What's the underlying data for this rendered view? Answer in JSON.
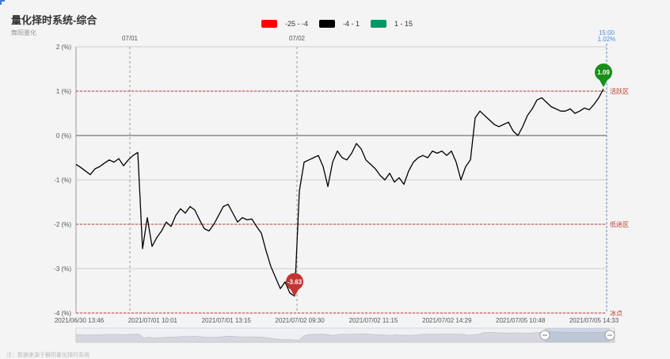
{
  "header": {
    "title": "量化择时系统-综合",
    "subtitle": "舞阳量化"
  },
  "legend": [
    {
      "label": "-25 - -4",
      "color": "#ff0000"
    },
    {
      "label": "-4 - 1",
      "color": "#000000"
    },
    {
      "label": "1 - 15",
      "color": "#009966"
    }
  ],
  "colors": {
    "line": "#000000",
    "zone_line": "#c0392b",
    "min_marker": "#c23531",
    "max_marker": "#1a8f1a",
    "cursor": "#4a90d9",
    "grid": "#cccccc"
  },
  "chart_data": {
    "type": "line",
    "title": "量化择时系统-综合",
    "ylim": [
      -4,
      2
    ],
    "y_ticks": [
      "2 (%)",
      "1 (%)",
      "0 (%)",
      "-1 (%)",
      "-2 (%)",
      "-3 (%)",
      "-4 (%)"
    ],
    "y_tick_values": [
      2,
      1,
      0,
      -1,
      -2,
      -3,
      -4
    ],
    "x_tick_labels": [
      "2021/06/30 13:46",
      "2021/07/01 10:01",
      "2021/07/01 13:15",
      "2021/07/02 09:30",
      "2021/07/02 11:15",
      "2021/07/02 14:29",
      "2021/07/05 10:48",
      "2021/07/05 14:33"
    ],
    "day_markers": [
      "07/01",
      "07/02"
    ],
    "zones": [
      {
        "label": "活跃区",
        "value": 1
      },
      {
        "label": "低迷区",
        "value": -2
      },
      {
        "label": "冰点",
        "value": -4
      }
    ],
    "markers": {
      "min": {
        "label": "-3.63",
        "value": -3.63
      },
      "max": {
        "label": "1.09",
        "value": 1.09
      }
    },
    "cursor": {
      "time": "15:00",
      "value": "1.02%"
    },
    "series": [
      {
        "values": [
          -0.65,
          -0.72,
          -0.8,
          -0.88,
          -0.75,
          -0.7,
          -0.62,
          -0.55,
          -0.6,
          -0.52,
          -0.68,
          -0.55,
          -0.45,
          -0.38,
          -2.55,
          -1.85,
          -2.5,
          -2.3,
          -2.15,
          -1.95,
          -2.05,
          -1.8,
          -1.65,
          -1.75,
          -1.6,
          -1.68,
          -1.9,
          -2.1,
          -2.15,
          -2.0,
          -1.8,
          -1.6,
          -1.55,
          -1.75,
          -1.95,
          -1.85,
          -1.9,
          -1.88,
          -2.05,
          -2.2,
          -2.6,
          -2.95,
          -3.2,
          -3.45,
          -3.3,
          -3.55,
          -3.62,
          -1.25,
          -0.6,
          -0.55,
          -0.5,
          -0.45,
          -0.7,
          -1.15,
          -0.6,
          -0.35,
          -0.5,
          -0.55,
          -0.4,
          -0.18,
          -0.3,
          -0.55,
          -0.65,
          -0.75,
          -0.9,
          -1.0,
          -0.85,
          -1.05,
          -0.95,
          -1.1,
          -0.8,
          -0.6,
          -0.5,
          -0.45,
          -0.5,
          -0.35,
          -0.4,
          -0.35,
          -0.45,
          -0.35,
          -0.6,
          -1.0,
          -0.7,
          -0.55,
          0.4,
          0.55,
          0.45,
          0.35,
          0.25,
          0.2,
          0.25,
          0.3,
          0.1,
          0.0,
          0.2,
          0.45,
          0.6,
          0.8,
          0.85,
          0.75,
          0.65,
          0.6,
          0.55,
          0.55,
          0.6,
          0.5,
          0.55,
          0.62,
          0.58,
          0.7,
          0.85,
          1.05
        ]
      }
    ]
  },
  "footer": {
    "note": "注：数据来源于舞阳量化择时系统"
  }
}
